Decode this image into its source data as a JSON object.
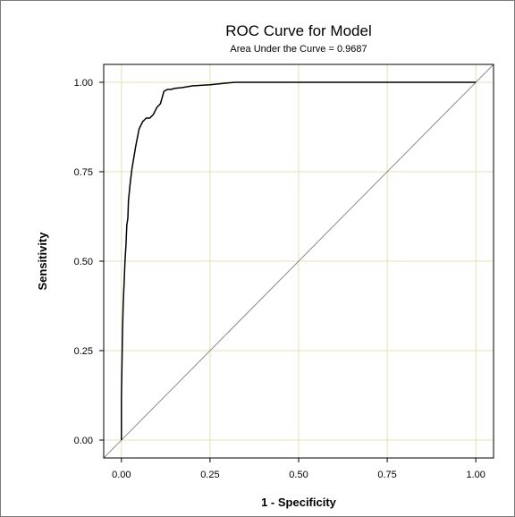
{
  "chart_data": {
    "type": "line",
    "title": "ROC Curve for Model",
    "subtitle": "Area Under the Curve = 0.9687",
    "xlabel": "1 - Specificity",
    "ylabel": "Sensitivity",
    "xlim": [
      -0.05,
      1.05
    ],
    "ylim": [
      -0.05,
      1.05
    ],
    "x_ticks": [
      0.0,
      0.25,
      0.5,
      0.75,
      1.0
    ],
    "x_tick_labels": [
      "0.00",
      "0.25",
      "0.50",
      "0.75",
      "1.00"
    ],
    "y_ticks": [
      0.0,
      0.25,
      0.5,
      0.75,
      1.0
    ],
    "y_tick_labels": [
      "0.00",
      "0.25",
      "0.50",
      "0.75",
      "1.00"
    ],
    "grid": true,
    "colors": {
      "grid": "#e6dfb6",
      "curve": "#000000",
      "diagonal": "#8c8c8c",
      "frame": "#000000"
    },
    "series": [
      {
        "x": [
          0.0,
          0.0,
          0.003,
          0.005,
          0.008,
          0.01,
          0.013,
          0.015,
          0.018,
          0.02,
          0.025,
          0.03,
          0.035,
          0.04,
          0.05,
          0.06,
          0.065,
          0.07,
          0.08,
          0.09,
          0.1,
          0.105,
          0.11,
          0.12,
          0.13,
          0.14,
          0.15,
          0.17,
          0.2,
          0.25,
          0.3,
          0.32,
          0.4,
          0.5,
          0.6,
          0.7,
          0.8,
          0.9,
          1.0
        ],
        "y": [
          0.0,
          0.12,
          0.3,
          0.38,
          0.45,
          0.5,
          0.55,
          0.6,
          0.62,
          0.67,
          0.72,
          0.76,
          0.79,
          0.82,
          0.87,
          0.89,
          0.895,
          0.9,
          0.9,
          0.91,
          0.93,
          0.935,
          0.94,
          0.975,
          0.98,
          0.98,
          0.983,
          0.985,
          0.99,
          0.993,
          0.998,
          1.0,
          1.0,
          1.0,
          1.0,
          1.0,
          1.0,
          1.0,
          1.0
        ]
      },
      {
        "x": [
          -0.05,
          1.05
        ],
        "y": [
          -0.05,
          1.05
        ]
      }
    ]
  }
}
